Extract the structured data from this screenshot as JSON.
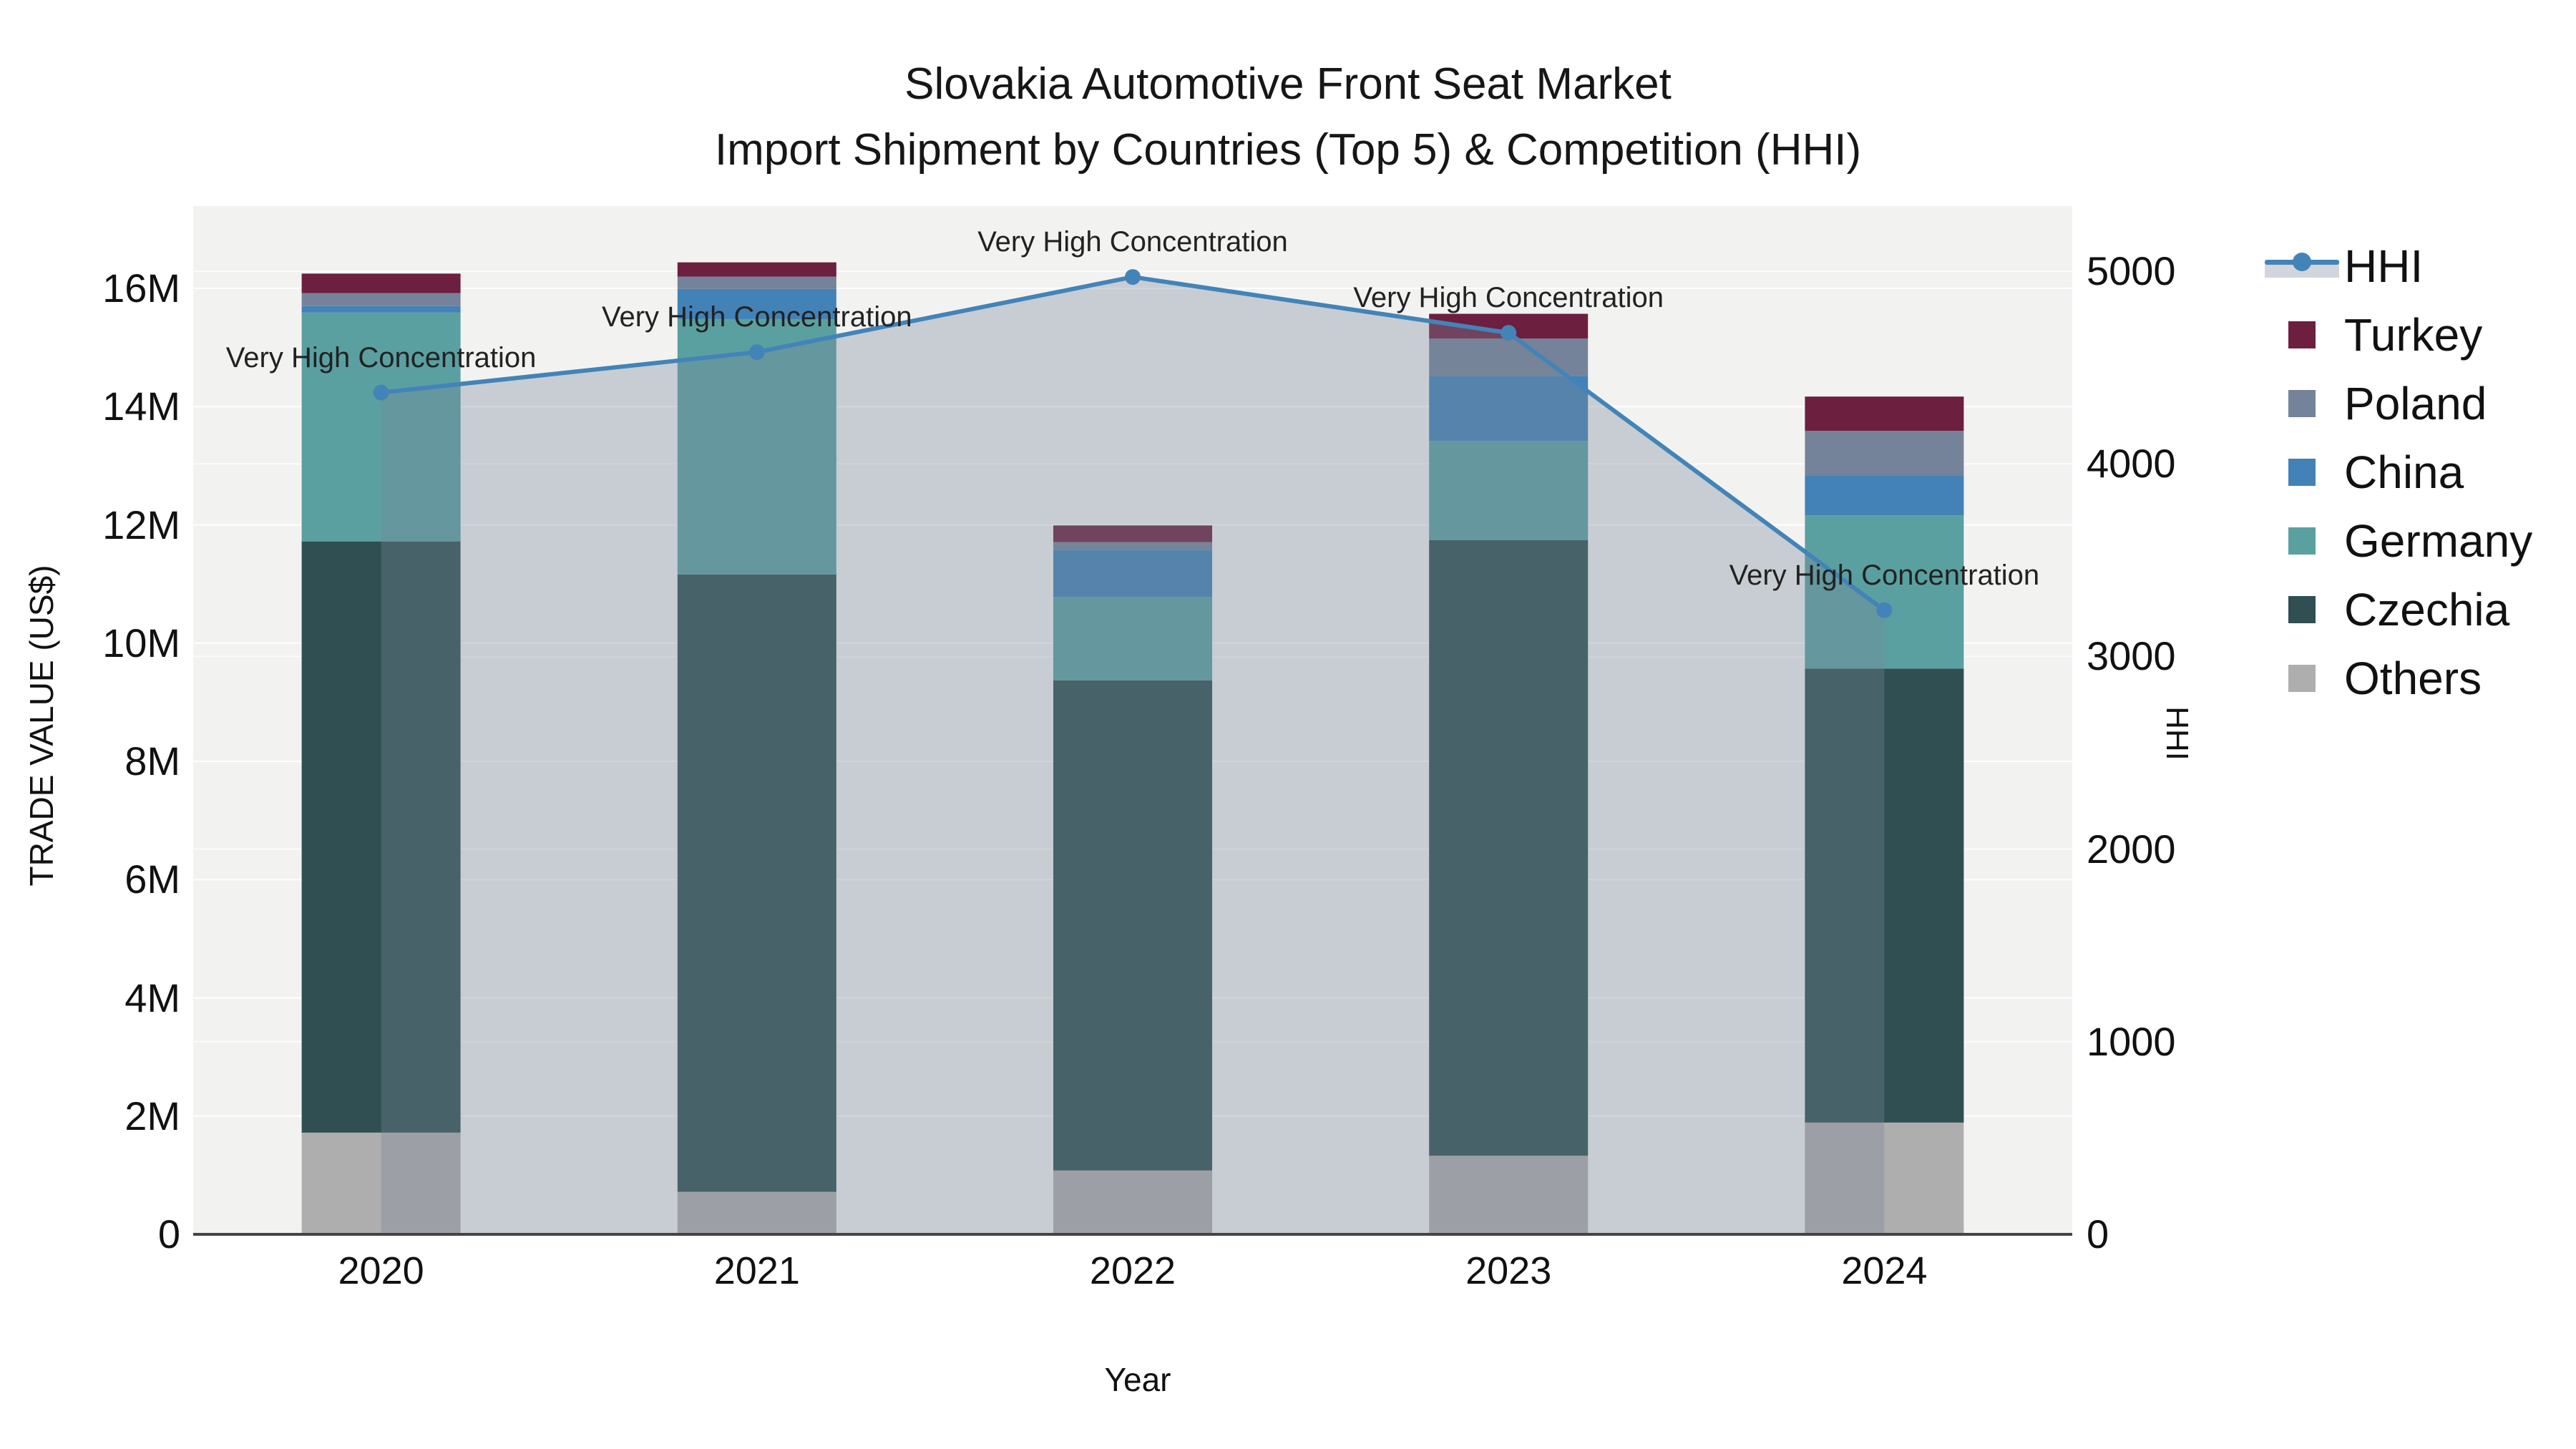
{
  "title": {
    "line1": "Slovakia Automotive Front Seat Market",
    "line2": "Import Shipment by Countries (Top 5) & Competition (HHI)"
  },
  "x_axis": {
    "title": "Year"
  },
  "y_left_axis": {
    "title": "TRADE VALUE (US$)",
    "tick_labels": [
      "0",
      "2M",
      "4M",
      "6M",
      "8M",
      "10M",
      "12M",
      "14M",
      "16M"
    ],
    "tick_values_millions": [
      0,
      2,
      4,
      6,
      8,
      10,
      12,
      14,
      16
    ]
  },
  "y_right_axis": {
    "title": "HHI",
    "tick_labels": [
      "0",
      "1000",
      "2000",
      "3000",
      "4000",
      "5000"
    ],
    "tick_values": [
      0,
      1000,
      2000,
      3000,
      4000,
      5000
    ]
  },
  "legend": {
    "entries": [
      {
        "label": "HHI",
        "type": "line",
        "color": "#4384b8",
        "band_color": "#d0d6dc"
      },
      {
        "label": "Turkey",
        "type": "swatch",
        "color": "#6d1f40"
      },
      {
        "label": "Poland",
        "type": "swatch",
        "color": "#748399"
      },
      {
        "label": "China",
        "type": "swatch",
        "color": "#4282b7"
      },
      {
        "label": "Germany",
        "type": "swatch",
        "color": "#5aa0a1"
      },
      {
        "label": "Czechia",
        "type": "swatch",
        "color": "#2f4f52"
      },
      {
        "label": "Others",
        "type": "swatch",
        "color": "#afaeae"
      }
    ]
  },
  "annotation_text": "Very High Concentration",
  "colors": {
    "plot_background": "#f2f3f1",
    "gridline": "#ffffff",
    "zero_line": "#444444",
    "hhi_line": "#4384b8",
    "hhi_fill": "rgba(119,136,153,0.35)"
  },
  "chart_data": {
    "type": "bar",
    "subtype": "stacked-bars-with-line",
    "title": "Slovakia Automotive Front Seat Market — Import Shipment by Countries (Top 5) & Competition (HHI)",
    "categories": [
      "2020",
      "2021",
      "2022",
      "2023",
      "2024"
    ],
    "unit": "US$ millions",
    "xlabel": "Year",
    "ylabel_left": "TRADE VALUE (US$)",
    "ylabel_right": "HHI",
    "ylim_left_millions": [
      0,
      17.4
    ],
    "ylim_right": [
      0,
      5350
    ],
    "grid": true,
    "legend_position": "right",
    "series_stack_bottom_to_top": [
      {
        "name": "Others",
        "color": "#afaeae",
        "values_millions": [
          1.72,
          0.72,
          1.08,
          1.33,
          1.89
        ]
      },
      {
        "name": "Czechia",
        "color": "#2f4f52",
        "values_millions": [
          10.0,
          10.44,
          8.29,
          10.41,
          7.68
        ]
      },
      {
        "name": "Germany",
        "color": "#5aa0a1",
        "values_millions": [
          3.87,
          4.32,
          1.41,
          1.68,
          2.59
        ]
      },
      {
        "name": "China",
        "color": "#4282b7",
        "values_millions": [
          0.11,
          0.51,
          0.8,
          1.1,
          0.68
        ]
      },
      {
        "name": "Poland",
        "color": "#748399",
        "values_millions": [
          0.22,
          0.21,
          0.13,
          0.63,
          0.75
        ]
      },
      {
        "name": "Turkey",
        "color": "#6d1f40",
        "values_millions": [
          0.33,
          0.24,
          0.28,
          0.42,
          0.58
        ]
      }
    ],
    "bar_totals_millions": [
      16.25,
      16.44,
      11.99,
      15.57,
      14.17
    ],
    "line_series": {
      "name": "HHI",
      "axis": "right",
      "color": "#4384b8",
      "fill_color": "rgba(119,136,153,0.35)",
      "values": [
        4370,
        4580,
        4970,
        4680,
        3240
      ],
      "point_annotations": [
        "Very High Concentration",
        "Very High Concentration",
        "Very High Concentration",
        "Very High Concentration",
        "Very High Concentration"
      ]
    }
  }
}
